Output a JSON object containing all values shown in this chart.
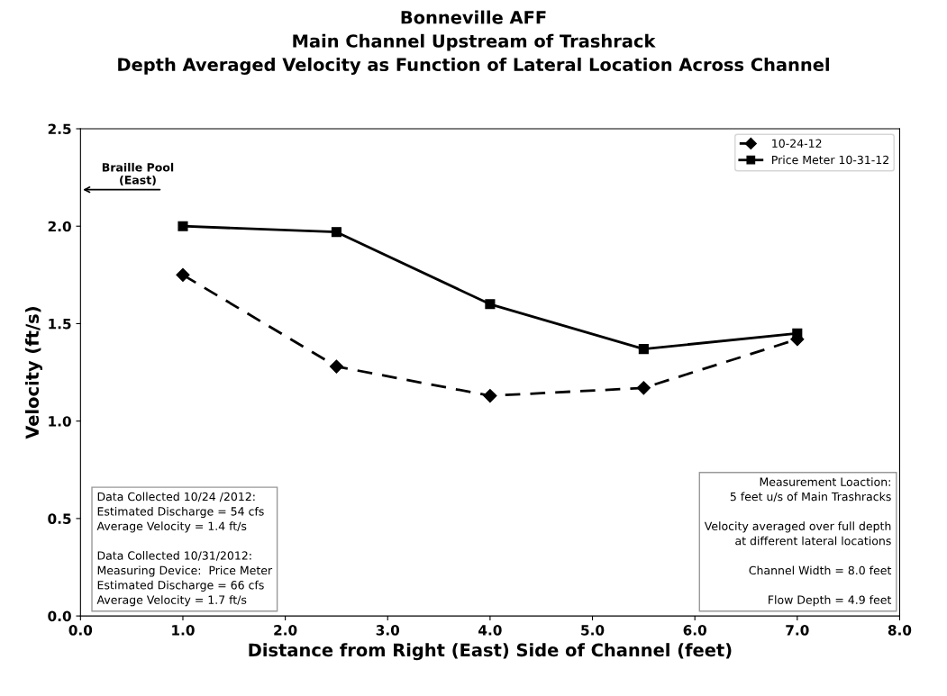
{
  "chart_data": {
    "type": "line",
    "title": "Bonneville AFF\nMain Channel Upstream of Trashrack\nDepth Averaged Velocity as Function of Lateral Location Across Channel",
    "xlabel": "Distance from Right (East) Side of Channel (feet)",
    "ylabel": "Velocity (ft/s)",
    "x": [
      1.0,
      2.5,
      4.0,
      5.5,
      7.0
    ],
    "series": [
      {
        "name": "10-24-12",
        "color": "#000000",
        "values": [
          1.75,
          1.28,
          1.13,
          1.17,
          1.42
        ],
        "line_style": "dashed",
        "marker": "diamond"
      },
      {
        "name": "Price Meter 10-31-12",
        "color": "#000000",
        "values": [
          2.0,
          1.97,
          1.6,
          1.37,
          1.45
        ],
        "line_style": "solid",
        "marker": "square"
      }
    ],
    "xlim": [
      0.0,
      8.0
    ],
    "xticks": [
      {
        "value": 0,
        "label": "0.0"
      },
      {
        "value": 1,
        "label": "1.0"
      },
      {
        "value": 2,
        "label": "2.0"
      },
      {
        "value": 3,
        "label": "3.0"
      },
      {
        "value": 4,
        "label": "4.0"
      },
      {
        "value": 5,
        "label": "5.0"
      },
      {
        "value": 6,
        "label": "6.0"
      },
      {
        "value": 7,
        "label": "7.0"
      },
      {
        "value": 8,
        "label": "8.0"
      }
    ],
    "ylim": [
      0.0,
      2.5
    ],
    "yticks": [
      {
        "value": 0,
        "label": "0.0"
      },
      {
        "value": 0.5,
        "label": "0.5"
      },
      {
        "value": 1,
        "label": "1.0"
      },
      {
        "value": 1.5,
        "label": "1.5"
      },
      {
        "value": 2,
        "label": "2.0"
      },
      {
        "value": 2.5,
        "label": "2.5"
      }
    ],
    "legend": "top right",
    "grid": false,
    "annotations": [
      "Braille Pool\n(East)",
      "Data Collected 10/24 /2012:\nEstimated Discharge = 54 cfs\nAverage Velocity = 1.4 ft/s\n\nData Collected 10/31/2012:\nMeasuring Device:  Price Meter\nEstimated Discharge = 66 cfs\nAverage Velocity = 1.7 ft/s",
      "Measurement Loaction:\n5 feet u/s of Main Trashracks\n\nVelocity averaged over full depth\n at different lateral locations\n\nChannel Width = 8.0 feet\n\nFlow Depth = 4.9 feet"
    ]
  }
}
